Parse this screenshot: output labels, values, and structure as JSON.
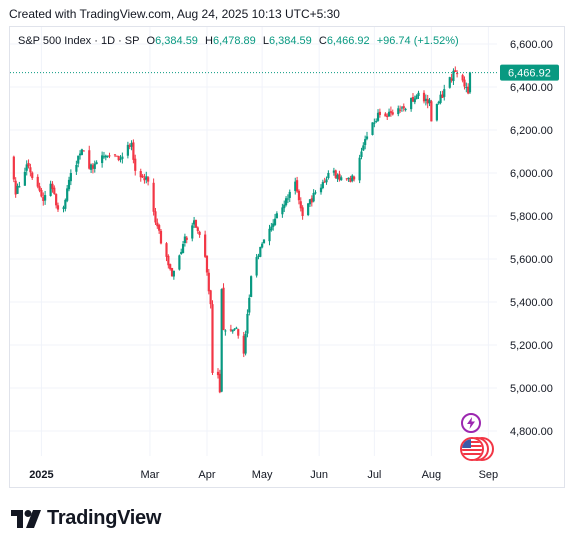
{
  "header": {
    "created_text": "Created with TradingView.com, Aug 24, 2025 10:13 UTC+5:30"
  },
  "legend": {
    "symbol": "S&P 500 Index · 1D · SP",
    "open_label": "O",
    "open": "6,384.59",
    "high_label": "H",
    "high": "6,478.89",
    "low_label": "L",
    "low": "6,384.59",
    "close_label": "C",
    "close": "6,466.92",
    "change": "+96.74 (+1.52%)"
  },
  "branding": {
    "logo_text": "TradingView"
  },
  "colors": {
    "up": "#089981",
    "down": "#f23645",
    "price_box": "#089981",
    "grid": "#f0f3fa"
  },
  "chart_data": {
    "type": "candlestick",
    "title": "S&P 500 Index · 1D · SP",
    "ylim": [
      4700,
      6650
    ],
    "y_ticks": [
      4800,
      5000,
      5200,
      5400,
      5600,
      5800,
      6000,
      6200,
      6400,
      6600
    ],
    "y_tick_labels": [
      "4,800.00",
      "5,000.00",
      "5,200.00",
      "5,400.00",
      "5,600.00",
      "5,800.00",
      "6,000.00",
      "6,200.00",
      "6,400.00",
      "6,600.00"
    ],
    "x_labels": [
      "2025",
      "Mar",
      "Apr",
      "May",
      "Jun",
      "Jul",
      "Aug",
      "Sep"
    ],
    "last_price": 6466.92,
    "last_price_label": "6,466.92",
    "anchors": [
      [
        "2024-12-16",
        6080
      ],
      [
        "2024-12-18",
        5900
      ],
      [
        "2024-12-24",
        6040
      ],
      [
        "2025-01-02",
        5870
      ],
      [
        "2025-01-06",
        5950
      ],
      [
        "2025-01-10",
        5830
      ],
      [
        "2025-01-13",
        5840
      ],
      [
        "2025-01-17",
        6000
      ],
      [
        "2025-01-23",
        6110
      ],
      [
        "2025-01-27",
        6020
      ],
      [
        "2025-01-31",
        6050
      ],
      [
        "2025-02-06",
        6080
      ],
      [
        "2025-02-12",
        6060
      ],
      [
        "2025-02-19",
        6140
      ],
      [
        "2025-02-21",
        6010
      ],
      [
        "2025-02-28",
        5960
      ],
      [
        "2025-03-04",
        5770
      ],
      [
        "2025-03-10",
        5610
      ],
      [
        "2025-03-13",
        5520
      ],
      [
        "2025-03-19",
        5670
      ],
      [
        "2025-03-25",
        5780
      ],
      [
        "2025-03-31",
        5610
      ],
      [
        "2025-04-03",
        5390
      ],
      [
        "2025-04-04",
        5070
      ],
      [
        "2025-04-07",
        5060
      ],
      [
        "2025-04-08",
        4980
      ],
      [
        "2025-04-09",
        5460
      ],
      [
        "2025-04-10",
        5270
      ],
      [
        "2025-04-17",
        5280
      ],
      [
        "2025-04-21",
        5160
      ],
      [
        "2025-04-25",
        5520
      ],
      [
        "2025-05-02",
        5690
      ],
      [
        "2025-05-12",
        5840
      ],
      [
        "2025-05-19",
        5960
      ],
      [
        "2025-05-23",
        5800
      ],
      [
        "2025-05-30",
        5910
      ],
      [
        "2025-06-06",
        6000
      ],
      [
        "2025-06-13",
        5980
      ],
      [
        "2025-06-20",
        5970
      ],
      [
        "2025-06-27",
        6170
      ],
      [
        "2025-07-03",
        6280
      ],
      [
        "2025-07-10",
        6280
      ],
      [
        "2025-07-17",
        6300
      ],
      [
        "2025-07-24",
        6360
      ],
      [
        "2025-07-31",
        6340
      ],
      [
        "2025-08-01",
        6240
      ],
      [
        "2025-08-08",
        6390
      ],
      [
        "2025-08-14",
        6470
      ],
      [
        "2025-08-20",
        6400
      ],
      [
        "2025-08-21",
        6370
      ],
      [
        "2025-08-22",
        6466.92
      ]
    ]
  }
}
